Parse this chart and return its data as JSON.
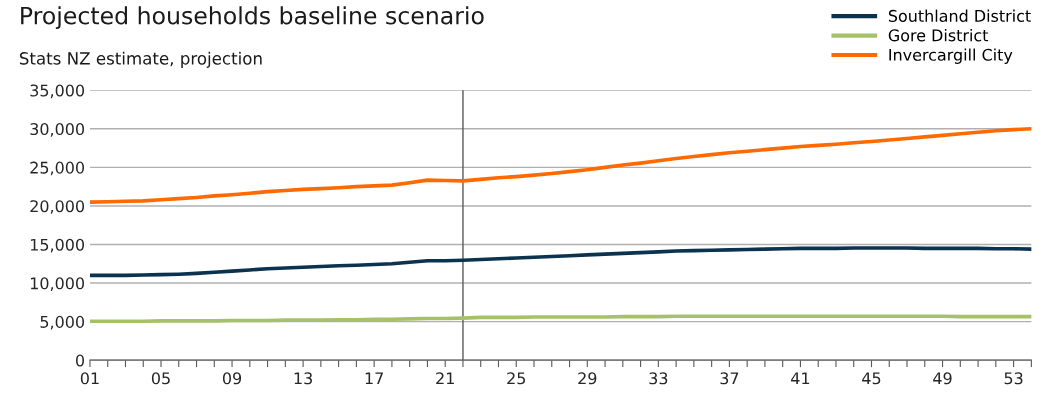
{
  "chart_data": {
    "type": "line",
    "title": "Projected households baseline scenario",
    "subtitle": "Stats NZ estimate, projection",
    "x": [
      1,
      2,
      3,
      4,
      5,
      6,
      7,
      8,
      9,
      10,
      11,
      12,
      13,
      14,
      15,
      16,
      17,
      18,
      19,
      20,
      21,
      22,
      23,
      24,
      25,
      26,
      27,
      28,
      29,
      30,
      31,
      32,
      33,
      34,
      35,
      36,
      37,
      38,
      39,
      40,
      41,
      42,
      43,
      44,
      45,
      46,
      47,
      48,
      49,
      50,
      51,
      52,
      53,
      54
    ],
    "xlim": [
      1,
      54
    ],
    "xticks": [
      {
        "value": 1,
        "label": "01"
      },
      {
        "value": 2,
        "label": null
      },
      {
        "value": 3,
        "label": null
      },
      {
        "value": 4,
        "label": null
      },
      {
        "value": 5,
        "label": "05"
      },
      {
        "value": 6,
        "label": null
      },
      {
        "value": 7,
        "label": null
      },
      {
        "value": 8,
        "label": null
      },
      {
        "value": 9,
        "label": "09"
      },
      {
        "value": 10,
        "label": null
      },
      {
        "value": 11,
        "label": null
      },
      {
        "value": 12,
        "label": null
      },
      {
        "value": 13,
        "label": "13"
      },
      {
        "value": 14,
        "label": null
      },
      {
        "value": 15,
        "label": null
      },
      {
        "value": 16,
        "label": null
      },
      {
        "value": 17,
        "label": "17"
      },
      {
        "value": 18,
        "label": null
      },
      {
        "value": 19,
        "label": null
      },
      {
        "value": 20,
        "label": null
      },
      {
        "value": 21,
        "label": "21"
      },
      {
        "value": 22,
        "label": null
      },
      {
        "value": 23,
        "label": null
      },
      {
        "value": 24,
        "label": null
      },
      {
        "value": 25,
        "label": "25"
      },
      {
        "value": 26,
        "label": null
      },
      {
        "value": 27,
        "label": null
      },
      {
        "value": 28,
        "label": null
      },
      {
        "value": 29,
        "label": "29"
      },
      {
        "value": 30,
        "label": null
      },
      {
        "value": 31,
        "label": null
      },
      {
        "value": 32,
        "label": null
      },
      {
        "value": 33,
        "label": "33"
      },
      {
        "value": 34,
        "label": null
      },
      {
        "value": 35,
        "label": null
      },
      {
        "value": 36,
        "label": null
      },
      {
        "value": 37,
        "label": "37"
      },
      {
        "value": 38,
        "label": null
      },
      {
        "value": 39,
        "label": null
      },
      {
        "value": 40,
        "label": null
      },
      {
        "value": 41,
        "label": "41"
      },
      {
        "value": 42,
        "label": null
      },
      {
        "value": 43,
        "label": null
      },
      {
        "value": 44,
        "label": null
      },
      {
        "value": 45,
        "label": "45"
      },
      {
        "value": 46,
        "label": null
      },
      {
        "value": 47,
        "label": null
      },
      {
        "value": 48,
        "label": null
      },
      {
        "value": 49,
        "label": "49"
      },
      {
        "value": 50,
        "label": null
      },
      {
        "value": 51,
        "label": null
      },
      {
        "value": 52,
        "label": null
      },
      {
        "value": 53,
        "label": "53"
      },
      {
        "value": 54,
        "label": null
      }
    ],
    "ylim": [
      0,
      35000
    ],
    "yticks": [
      {
        "value": 0,
        "label": "0"
      },
      {
        "value": 5000,
        "label": "5,000"
      },
      {
        "value": 10000,
        "label": "10,000"
      },
      {
        "value": 15000,
        "label": "15,000"
      },
      {
        "value": 20000,
        "label": "20,000"
      },
      {
        "value": 25000,
        "label": "25,000"
      },
      {
        "value": 30000,
        "label": "30,000"
      },
      {
        "value": 35000,
        "label": "35,000"
      }
    ],
    "grid": "y",
    "legend": "top right",
    "marker": "none",
    "line_style": "solid",
    "ref_lines": [
      {
        "axis": "x",
        "value": 22,
        "color": "#595959",
        "line_style": "solid"
      }
    ],
    "series": [
      {
        "name": "Southland District",
        "color": "#0b3350",
        "values": [
          11000,
          11000,
          11000,
          11050,
          11100,
          11150,
          11250,
          11400,
          11550,
          11700,
          11850,
          11950,
          12050,
          12150,
          12250,
          12300,
          12400,
          12500,
          12700,
          12900,
          12900,
          12950,
          13050,
          13150,
          13250,
          13350,
          13450,
          13550,
          13650,
          13750,
          13850,
          13950,
          14050,
          14150,
          14200,
          14250,
          14300,
          14350,
          14400,
          14450,
          14500,
          14500,
          14500,
          14550,
          14550,
          14550,
          14550,
          14500,
          14500,
          14500,
          14500,
          14450,
          14450,
          14400
        ]
      },
      {
        "name": "Gore District",
        "color": "#a5c26b",
        "values": [
          5050,
          5050,
          5050,
          5050,
          5100,
          5100,
          5100,
          5100,
          5150,
          5150,
          5150,
          5200,
          5200,
          5200,
          5250,
          5250,
          5300,
          5300,
          5350,
          5400,
          5400,
          5450,
          5550,
          5550,
          5550,
          5600,
          5600,
          5600,
          5600,
          5600,
          5650,
          5650,
          5650,
          5700,
          5700,
          5700,
          5700,
          5700,
          5700,
          5700,
          5700,
          5700,
          5700,
          5700,
          5700,
          5700,
          5700,
          5700,
          5700,
          5650,
          5650,
          5650,
          5650,
          5650
        ]
      },
      {
        "name": "Invercargill City",
        "color": "#ff6a00",
        "values": [
          20500,
          20550,
          20600,
          20650,
          20800,
          20950,
          21100,
          21300,
          21450,
          21650,
          21850,
          22000,
          22150,
          22250,
          22350,
          22500,
          22600,
          22700,
          23000,
          23350,
          23300,
          23250,
          23450,
          23650,
          23800,
          24000,
          24200,
          24450,
          24700,
          25000,
          25300,
          25550,
          25850,
          26150,
          26400,
          26650,
          26900,
          27100,
          27300,
          27500,
          27700,
          27850,
          28000,
          28200,
          28350,
          28550,
          28750,
          28950,
          29150,
          29350,
          29550,
          29750,
          29900,
          30000
        ]
      }
    ]
  }
}
